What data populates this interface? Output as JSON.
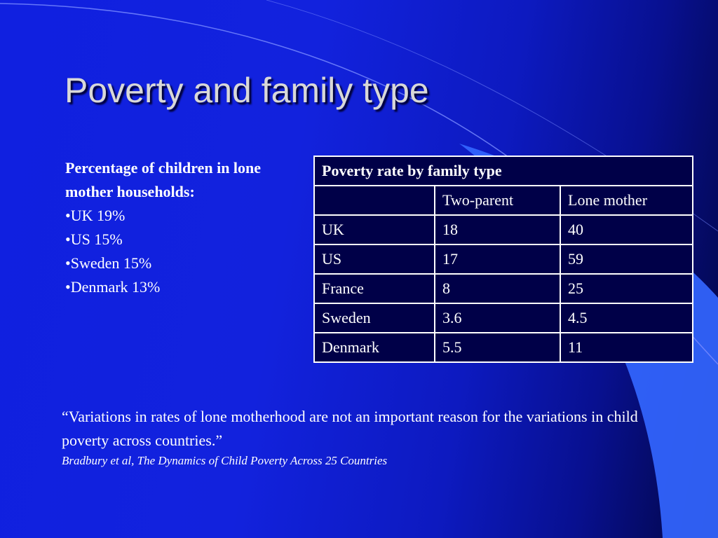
{
  "slide": {
    "title": "Poverty and family type"
  },
  "left_panel": {
    "heading": "Percentage of children in lone mother households:",
    "bullets": [
      "UK 19%",
      "US 15%",
      "Sweden 15%",
      "Denmark 13%"
    ]
  },
  "table": {
    "caption": "Poverty rate by family type",
    "columns": [
      "",
      "Two-parent",
      "Lone mother"
    ],
    "rows": [
      [
        "UK",
        "18",
        "40"
      ],
      [
        "US",
        "17",
        "59"
      ],
      [
        "France",
        "8",
        "25"
      ],
      [
        "Sweden",
        "3.6",
        "4.5"
      ],
      [
        "Denmark",
        "5.5",
        "11"
      ]
    ]
  },
  "quote": {
    "text": "“Variations in rates of lone motherhood are not an important reason for the variations in child poverty across countries.”",
    "citation": "Bradbury et al, The Dynamics of Child Poverty Across 25 Countries"
  },
  "colors": {
    "background": "#1020e0",
    "swoosh": "#3366ff",
    "table_background": "#000048",
    "title_text": "#d8d8d8"
  }
}
